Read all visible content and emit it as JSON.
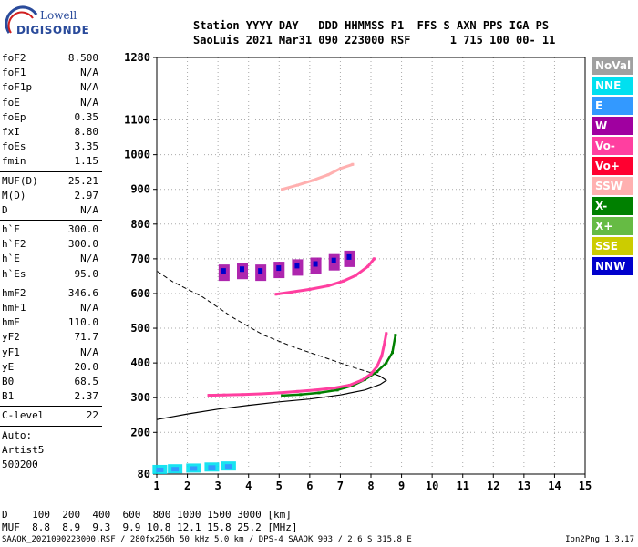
{
  "logo": {
    "line1": "Lowell",
    "line2": "DIGISONDE"
  },
  "header": {
    "labels": "Station YYYY DAY   DDD HHMMSS P1  FFS S AXN PPS IGA PS",
    "values": "SaoLuis 2021 Mar31 090 223000 RSF      1 715 100 00- 11"
  },
  "params": [
    [
      {
        "k": "foF2",
        "v": "8.500"
      },
      {
        "k": "foF1",
        "v": "N/A"
      },
      {
        "k": "foF1p",
        "v": "N/A"
      },
      {
        "k": "foE",
        "v": "N/A"
      },
      {
        "k": "foEp",
        "v": "0.35"
      },
      {
        "k": "fxI",
        "v": "8.80"
      },
      {
        "k": "foEs",
        "v": "3.35"
      },
      {
        "k": "fmin",
        "v": "1.15"
      }
    ],
    [
      {
        "k": "MUF(D)",
        "v": "25.21"
      },
      {
        "k": "M(D)",
        "v": "2.97"
      },
      {
        "k": "D",
        "v": "N/A"
      }
    ],
    [
      {
        "k": "h`F",
        "v": "300.0"
      },
      {
        "k": "h`F2",
        "v": "300.0"
      },
      {
        "k": "h`E",
        "v": "N/A"
      },
      {
        "k": "h`Es",
        "v": "95.0"
      }
    ],
    [
      {
        "k": "hmF2",
        "v": "346.6"
      },
      {
        "k": "hmF1",
        "v": "N/A"
      },
      {
        "k": "hmE",
        "v": "110.0"
      },
      {
        "k": "yF2",
        "v": "71.7"
      },
      {
        "k": "yF1",
        "v": "N/A"
      },
      {
        "k": "yE",
        "v": "20.0"
      },
      {
        "k": "B0",
        "v": "68.5"
      },
      {
        "k": "B1",
        "v": "2.37"
      }
    ],
    [
      {
        "k": "C-level",
        "v": "22"
      }
    ],
    [
      {
        "k": "Auto:",
        "v": ""
      },
      {
        "k": "Artist5",
        "v": ""
      },
      {
        "k": "500200",
        "v": ""
      }
    ]
  ],
  "legend": [
    {
      "label": "NoVal",
      "color": "#a0a0a0"
    },
    {
      "label": "NNE",
      "color": "#00e0f0"
    },
    {
      "label": "E",
      "color": "#3399ff"
    },
    {
      "label": "W",
      "color": "#a000a0"
    },
    {
      "label": "Vo-",
      "color": "#ff3fa0"
    },
    {
      "label": "Vo+",
      "color": "#ff0030"
    },
    {
      "label": "SSW",
      "color": "#ffb0b0"
    },
    {
      "label": "X-",
      "color": "#008000"
    },
    {
      "label": "X+",
      "color": "#66bb44"
    },
    {
      "label": "SSE",
      "color": "#cccc00"
    },
    {
      "label": "NNW",
      "color": "#0000cc"
    }
  ],
  "muf_table": {
    "d_row": "D    100  200  400  600  800 1000 1500 3000 [km]",
    "muf_row": "MUF  8.8  8.9  9.3  9.9 10.8 12.1 15.8 25.2 [MHz]"
  },
  "footer": "SAAOK_2021090223000.RSF / 280fx256h 50 kHz 5.0 km / DPS-4 SAAOK 903 / 2.6 S 315.8 E",
  "version": "Ion2Png 1.3.17",
  "chart_data": {
    "type": "scatter",
    "xlim": [
      1,
      15
    ],
    "ylim": [
      80,
      1280
    ],
    "x_ticks": [
      1,
      2,
      3,
      4,
      5,
      6,
      7,
      8,
      9,
      10,
      11,
      12,
      13,
      14,
      15
    ],
    "y_ticks": [
      80,
      200,
      300,
      400,
      500,
      600,
      700,
      800,
      900,
      1000,
      1100,
      1280
    ],
    "grid": true,
    "o_trace": [
      [
        2.7,
        307
      ],
      [
        3.2,
        308
      ],
      [
        3.8,
        309
      ],
      [
        4.4,
        311
      ],
      [
        5.0,
        314
      ],
      [
        5.6,
        318
      ],
      [
        6.2,
        322
      ],
      [
        6.8,
        328
      ],
      [
        7.3,
        336
      ],
      [
        7.7,
        350
      ],
      [
        8.0,
        368
      ],
      [
        8.2,
        390
      ],
      [
        8.35,
        420
      ],
      [
        8.45,
        460
      ],
      [
        8.5,
        485
      ]
    ],
    "x_trace": [
      [
        5.1,
        306
      ],
      [
        5.7,
        309
      ],
      [
        6.3,
        314
      ],
      [
        6.9,
        322
      ],
      [
        7.4,
        335
      ],
      [
        7.8,
        352
      ],
      [
        8.2,
        375
      ],
      [
        8.5,
        400
      ],
      [
        8.7,
        430
      ],
      [
        8.8,
        480
      ]
    ],
    "o_trace_2": [
      [
        4.9,
        598
      ],
      [
        5.4,
        604
      ],
      [
        6.0,
        612
      ],
      [
        6.6,
        622
      ],
      [
        7.1,
        636
      ],
      [
        7.5,
        652
      ],
      [
        7.9,
        678
      ],
      [
        8.1,
        700
      ]
    ],
    "spread_f": [
      [
        3.2,
        660
      ],
      [
        3.8,
        665
      ],
      [
        4.4,
        660
      ],
      [
        5.0,
        668
      ],
      [
        5.6,
        675
      ],
      [
        6.2,
        680
      ],
      [
        6.8,
        690
      ],
      [
        7.3,
        700
      ]
    ],
    "second_hop": [
      [
        5.1,
        900
      ],
      [
        5.6,
        912
      ],
      [
        6.1,
        926
      ],
      [
        6.6,
        942
      ],
      [
        7.0,
        960
      ],
      [
        7.4,
        972
      ]
    ],
    "es_trace": [
      [
        1.1,
        88
      ],
      [
        1.6,
        90
      ],
      [
        2.2,
        92
      ],
      [
        2.8,
        95
      ],
      [
        3.35,
        98
      ]
    ],
    "profile_solid": [
      [
        1.0,
        237
      ],
      [
        1.5,
        245
      ],
      [
        2.0,
        253
      ],
      [
        3.0,
        267
      ],
      [
        4.0,
        278
      ],
      [
        5.0,
        288
      ],
      [
        6.0,
        296
      ],
      [
        7.0,
        308
      ],
      [
        7.8,
        322
      ],
      [
        8.3,
        338
      ],
      [
        8.5,
        350
      ],
      [
        8.3,
        362
      ],
      [
        8.0,
        372
      ]
    ],
    "profile_dashed": [
      [
        8.0,
        372
      ],
      [
        7.5,
        385
      ],
      [
        6.5,
        415
      ],
      [
        5.5,
        445
      ],
      [
        4.5,
        480
      ],
      [
        3.5,
        530
      ],
      [
        2.5,
        590
      ],
      [
        1.5,
        635
      ],
      [
        1.0,
        665
      ]
    ]
  }
}
